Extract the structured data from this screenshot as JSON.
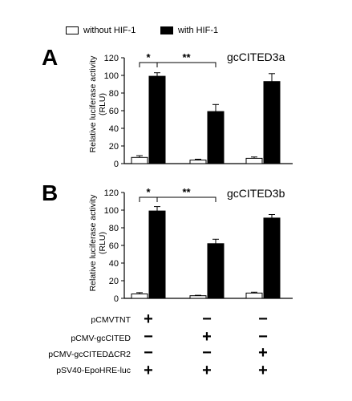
{
  "legend": {
    "items": [
      {
        "label": "without HIF-1",
        "color": "#ffffff"
      },
      {
        "label": "with HIF-1",
        "color": "#000000"
      }
    ]
  },
  "panels": [
    {
      "letter": "A",
      "title": "gcCITED3a",
      "ylabel": [
        "Relative luciferase activity",
        "(RLU)"
      ]
    },
    {
      "letter": "B",
      "title": "gcCITED3b",
      "ylabel": [
        "Relative luciferase activity",
        "(RLU)"
      ]
    }
  ],
  "constructs": {
    "rows": [
      {
        "label": "pCMVTNT",
        "marks": [
          "+",
          "−",
          "−"
        ]
      },
      {
        "label": "pCMV-gcCITED",
        "marks": [
          "−",
          "+",
          "−"
        ]
      },
      {
        "label": "pCMV-gcCITEDΔCR2",
        "marks": [
          "−",
          "−",
          "+"
        ]
      },
      {
        "label": "pSV40-EpoHRE-luc",
        "marks": [
          "+",
          "+",
          "+"
        ]
      }
    ]
  },
  "chart_data": [
    {
      "type": "bar",
      "title": "gcCITED3a",
      "ylabel": "Relative luciferase activity (RLU)",
      "ylim": [
        0,
        120
      ],
      "yticks": [
        0,
        20,
        40,
        60,
        80,
        100,
        120
      ],
      "series": [
        {
          "name": "without HIF-1",
          "color": "#ffffff",
          "values": [
            7,
            4,
            6
          ],
          "errors": [
            2,
            1,
            1.5
          ]
        },
        {
          "name": "with HIF-1",
          "color": "#000000",
          "values": [
            99,
            59,
            93
          ],
          "errors": [
            4,
            8,
            9
          ]
        }
      ],
      "annotations": [
        {
          "text": "*",
          "from": [
            0,
            0
          ],
          "to": [
            0,
            1
          ]
        },
        {
          "text": "**",
          "from": [
            0,
            1
          ],
          "to": [
            1,
            1
          ]
        }
      ]
    },
    {
      "type": "bar",
      "title": "gcCITED3b",
      "ylabel": "Relative luciferase activity (RLU)",
      "ylim": [
        0,
        120
      ],
      "yticks": [
        0,
        20,
        40,
        60,
        80,
        100,
        120
      ],
      "series": [
        {
          "name": "without HIF-1",
          "color": "#ffffff",
          "values": [
            5,
            3,
            6
          ],
          "errors": [
            1.5,
            0.5,
            1
          ]
        },
        {
          "name": "with HIF-1",
          "color": "#000000",
          "values": [
            99,
            62,
            91
          ],
          "errors": [
            5,
            5,
            4
          ]
        }
      ],
      "annotations": [
        {
          "text": "*",
          "from": [
            0,
            0
          ],
          "to": [
            0,
            1
          ]
        },
        {
          "text": "**",
          "from": [
            0,
            1
          ],
          "to": [
            1,
            1
          ]
        }
      ]
    }
  ]
}
